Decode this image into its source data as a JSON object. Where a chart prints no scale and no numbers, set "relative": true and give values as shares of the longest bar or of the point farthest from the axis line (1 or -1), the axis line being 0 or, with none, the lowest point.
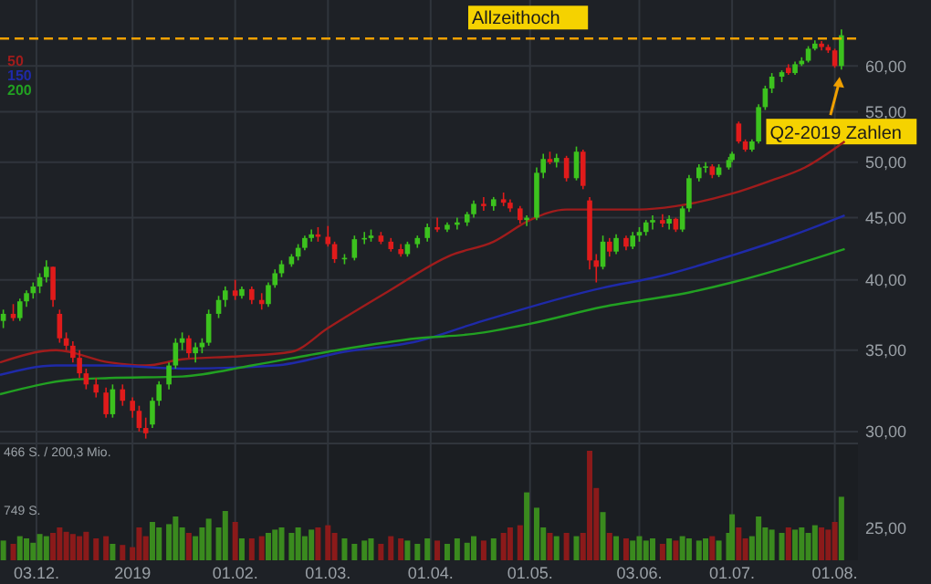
{
  "chart_data": [
    {
      "type": "candlestick",
      "xlim": [
        "2018-11-22",
        "2019-08-08"
      ],
      "xticks": [
        {
          "value": "2018-12-03",
          "label": null
        },
        {
          "value": "2019-01-01",
          "label": null
        },
        {
          "value": "2019-02-01",
          "label": null
        },
        {
          "value": "2019-03-01",
          "label": null
        },
        {
          "value": "2019-04-01",
          "label": null
        },
        {
          "value": "2019-05-01",
          "label": null
        },
        {
          "value": "2019-06-03",
          "label": null
        },
        {
          "value": "2019-07-01",
          "label": null
        },
        {
          "value": "2019-08-01",
          "label": null
        }
      ],
      "ylim": [
        23.5,
        68
      ],
      "yticks": [
        {
          "value": 25,
          "label": "25,00"
        },
        {
          "value": 30,
          "label": "30,00"
        },
        {
          "value": 35,
          "label": "35,00"
        },
        {
          "value": 40,
          "label": "40,00"
        },
        {
          "value": 45,
          "label": "45,00"
        },
        {
          "value": 50,
          "label": "50,00"
        },
        {
          "value": 55,
          "label": "55,00"
        },
        {
          "value": 60,
          "label": "60,00"
        }
      ],
      "log": true,
      "grid": true,
      "tick_labels": "y",
      "legend": "top left",
      "x": [
        "2018-11-23",
        "2018-11-26",
        "2018-11-28",
        "2018-11-30",
        "2018-12-02",
        "2018-12-04",
        "2018-12-06",
        "2018-12-08",
        "2018-12-10",
        "2018-12-12",
        "2018-12-14",
        "2018-12-16",
        "2018-12-18",
        "2018-12-21",
        "2018-12-24",
        "2018-12-26",
        "2018-12-29",
        "2019-01-01",
        "2019-01-03",
        "2019-01-05",
        "2019-01-07",
        "2019-01-09",
        "2019-01-12",
        "2019-01-14",
        "2019-01-16",
        "2019-01-18",
        "2019-01-20",
        "2019-01-22",
        "2019-01-24",
        "2019-01-27",
        "2019-01-29",
        "2019-02-01",
        "2019-02-03",
        "2019-02-06",
        "2019-02-09",
        "2019-02-11",
        "2019-02-13",
        "2019-02-15",
        "2019-02-18",
        "2019-02-20",
        "2019-02-22",
        "2019-02-24",
        "2019-02-26",
        "2019-03-01",
        "2019-03-03",
        "2019-03-06",
        "2019-03-09",
        "2019-03-12",
        "2019-03-14",
        "2019-03-17",
        "2019-03-20",
        "2019-03-23",
        "2019-03-25",
        "2019-03-28",
        "2019-03-31",
        "2019-04-03",
        "2019-04-06",
        "2019-04-09",
        "2019-04-12",
        "2019-04-14",
        "2019-04-17",
        "2019-04-20",
        "2019-04-23",
        "2019-04-25",
        "2019-04-28",
        "2019-04-30",
        "2019-05-03",
        "2019-05-05",
        "2019-05-07",
        "2019-05-09",
        "2019-05-12",
        "2019-05-15",
        "2019-05-17",
        "2019-05-19",
        "2019-05-21",
        "2019-05-23",
        "2019-05-25",
        "2019-05-27",
        "2019-05-30",
        "2019-06-01",
        "2019-06-03",
        "2019-06-05",
        "2019-06-07",
        "2019-06-10",
        "2019-06-12",
        "2019-06-14",
        "2019-06-16",
        "2019-06-18",
        "2019-06-21",
        "2019-06-23",
        "2019-06-25",
        "2019-06-27",
        "2019-06-30",
        "2019-07-01",
        "2019-07-03",
        "2019-07-05",
        "2019-07-07",
        "2019-07-09",
        "2019-07-11",
        "2019-07-13",
        "2019-07-16",
        "2019-07-18",
        "2019-07-20",
        "2019-07-22",
        "2019-07-24",
        "2019-07-26",
        "2019-07-28",
        "2019-07-30",
        "2019-08-01",
        "2019-08-03"
      ],
      "ohlc": [
        [
          37.0,
          37.8,
          36.5,
          37.5
        ],
        [
          37.5,
          38.2,
          37.0,
          37.2
        ],
        [
          37.2,
          38.6,
          37.0,
          38.4
        ],
        [
          38.4,
          39.2,
          38.0,
          39.0
        ],
        [
          39.0,
          39.8,
          38.6,
          39.5
        ],
        [
          39.5,
          40.5,
          39.0,
          40.2
        ],
        [
          40.2,
          41.5,
          39.8,
          41.0
        ],
        [
          41.0,
          41.0,
          38.0,
          38.5
        ],
        [
          37.5,
          37.8,
          35.5,
          35.8
        ],
        [
          35.8,
          36.2,
          35.0,
          35.3
        ],
        [
          35.3,
          35.6,
          34.2,
          34.5
        ],
        [
          34.5,
          35.0,
          33.2,
          33.5
        ],
        [
          33.5,
          33.8,
          32.5,
          32.8
        ],
        [
          32.8,
          33.2,
          32.0,
          32.3
        ],
        [
          32.3,
          32.6,
          30.8,
          31.0
        ],
        [
          31.0,
          32.8,
          30.8,
          32.5
        ],
        [
          32.5,
          32.8,
          31.5,
          31.8
        ],
        [
          31.8,
          32.0,
          30.8,
          31.2
        ],
        [
          31.2,
          31.5,
          30.0,
          30.2
        ],
        [
          30.2,
          30.8,
          29.6,
          29.9
        ],
        [
          30.4,
          32.0,
          30.2,
          31.8
        ],
        [
          31.8,
          33.0,
          31.5,
          32.8
        ],
        [
          32.8,
          34.2,
          32.5,
          34.0
        ],
        [
          34.0,
          35.8,
          33.8,
          35.5
        ],
        [
          35.5,
          36.2,
          35.0,
          35.8
        ],
        [
          35.8,
          36.0,
          34.5,
          34.8
        ],
        [
          34.8,
          35.5,
          34.2,
          35.2
        ],
        [
          35.2,
          35.8,
          34.8,
          35.5
        ],
        [
          35.5,
          37.8,
          35.3,
          37.5
        ],
        [
          37.5,
          38.8,
          37.2,
          38.5
        ],
        [
          38.5,
          39.5,
          38.0,
          39.2
        ],
        [
          39.2,
          40.0,
          38.5,
          38.8
        ],
        [
          38.8,
          39.5,
          38.6,
          39.3
        ],
        [
          39.3,
          39.5,
          38.2,
          38.5
        ],
        [
          38.5,
          39.0,
          37.8,
          38.2
        ],
        [
          38.2,
          39.8,
          38.0,
          39.6
        ],
        [
          39.6,
          40.8,
          39.4,
          40.5
        ],
        [
          40.5,
          41.5,
          40.2,
          41.2
        ],
        [
          41.2,
          42.0,
          41.0,
          41.8
        ],
        [
          41.8,
          42.8,
          41.5,
          42.5
        ],
        [
          42.5,
          43.5,
          42.3,
          43.3
        ],
        [
          43.3,
          44.0,
          43.0,
          43.6
        ],
        [
          43.6,
          44.2,
          43.0,
          43.4
        ],
        [
          43.4,
          44.3,
          42.6,
          42.8
        ],
        [
          42.8,
          43.0,
          41.3,
          41.6
        ],
        [
          41.6,
          42.0,
          41.2,
          41.7
        ],
        [
          41.7,
          43.5,
          41.5,
          43.2
        ],
        [
          43.2,
          43.8,
          42.8,
          43.3
        ],
        [
          43.3,
          44.0,
          43.0,
          43.5
        ],
        [
          43.5,
          43.8,
          42.8,
          43.0
        ],
        [
          43.0,
          43.3,
          42.2,
          42.4
        ],
        [
          42.4,
          42.8,
          41.8,
          42.0
        ],
        [
          42.0,
          43.0,
          41.8,
          42.8
        ],
        [
          42.8,
          43.5,
          42.5,
          43.3
        ],
        [
          43.3,
          44.5,
          43.0,
          44.2
        ],
        [
          44.2,
          45.0,
          43.8,
          44.0
        ],
        [
          44.0,
          44.6,
          43.8,
          44.4
        ],
        [
          44.4,
          45.0,
          44.0,
          44.6
        ],
        [
          44.6,
          45.5,
          44.3,
          45.3
        ],
        [
          45.3,
          46.5,
          45.0,
          46.2
        ],
        [
          46.2,
          46.8,
          45.6,
          46.0
        ],
        [
          46.0,
          46.8,
          45.6,
          46.6
        ],
        [
          46.6,
          47.2,
          46.0,
          46.3
        ],
        [
          46.3,
          46.6,
          45.5,
          45.8
        ],
        [
          45.8,
          46.0,
          44.5,
          44.8
        ],
        [
          44.8,
          45.2,
          44.3,
          45.0
        ],
        [
          45.0,
          49.5,
          44.8,
          49.0
        ],
        [
          49.0,
          50.8,
          48.5,
          50.3
        ],
        [
          50.3,
          51.0,
          49.8,
          50.0
        ],
        [
          50.0,
          50.8,
          49.5,
          50.4
        ],
        [
          50.4,
          50.6,
          48.2,
          48.5
        ],
        [
          48.5,
          51.5,
          48.3,
          51.0
        ],
        [
          51.0,
          51.2,
          47.5,
          47.8
        ],
        [
          46.5,
          46.8,
          40.8,
          41.5
        ],
        [
          41.5,
          42.0,
          39.8,
          41.0
        ],
        [
          41.0,
          43.5,
          40.8,
          43.0
        ],
        [
          43.0,
          43.3,
          41.8,
          42.2
        ],
        [
          42.2,
          43.6,
          42.0,
          43.3
        ],
        [
          43.3,
          43.5,
          42.3,
          42.6
        ],
        [
          42.6,
          43.8,
          42.4,
          43.5
        ],
        [
          43.5,
          44.2,
          43.0,
          43.8
        ],
        [
          43.8,
          44.8,
          43.5,
          44.6
        ],
        [
          44.6,
          45.2,
          44.0,
          44.8
        ],
        [
          44.8,
          45.3,
          44.2,
          44.5
        ],
        [
          44.5,
          45.2,
          44.0,
          44.9
        ],
        [
          44.9,
          45.0,
          43.8,
          44.0
        ],
        [
          44.0,
          46.0,
          43.8,
          45.8
        ],
        [
          45.8,
          48.8,
          45.5,
          48.5
        ],
        [
          48.5,
          49.8,
          48.2,
          49.5
        ],
        [
          49.5,
          50.0,
          49.0,
          49.6
        ],
        [
          49.6,
          49.8,
          48.5,
          48.8
        ],
        [
          48.8,
          49.8,
          48.6,
          49.5
        ],
        [
          49.5,
          50.5,
          49.3,
          50.2
        ],
        [
          50.2,
          51.0,
          50.0,
          50.8
        ],
        [
          53.8,
          54.0,
          51.8,
          52.0
        ],
        [
          52.0,
          52.2,
          51.0,
          51.2
        ],
        [
          51.2,
          52.2,
          51.0,
          52.0
        ],
        [
          52.0,
          55.8,
          51.8,
          55.5
        ],
        [
          55.5,
          57.8,
          55.2,
          57.5
        ],
        [
          57.5,
          59.2,
          57.0,
          58.8
        ],
        [
          58.8,
          59.5,
          58.2,
          59.3
        ],
        [
          59.8,
          60.2,
          59.0,
          59.2
        ],
        [
          59.2,
          60.5,
          59.0,
          60.2
        ],
        [
          60.2,
          61.0,
          60.0,
          60.6
        ],
        [
          60.6,
          62.3,
          60.4,
          62.0
        ],
        [
          62.0,
          63.0,
          61.8,
          62.6
        ],
        [
          62.6,
          62.9,
          61.8,
          62.2
        ],
        [
          62.2,
          62.5,
          61.5,
          61.8
        ],
        [
          61.8,
          62.0,
          59.8,
          60.0
        ],
        [
          60.0,
          64.3,
          59.6,
          63.6
        ]
      ],
      "series": [
        {
          "type": "line",
          "name": "50",
          "color": "#a01c1c",
          "x": [
            "2018-11-22",
            "2018-12-09",
            "2018-12-25",
            "2019-01-05",
            "2019-01-16",
            "2019-02-02",
            "2019-02-18",
            "2019-03-01",
            "2019-03-19",
            "2019-04-07",
            "2019-04-20",
            "2019-05-01",
            "2019-05-12",
            "2019-05-23",
            "2019-06-03",
            "2019-06-14",
            "2019-07-01",
            "2019-07-12",
            "2019-07-23",
            "2019-08-04"
          ],
          "values": [
            34.2,
            35.0,
            34.2,
            34.0,
            34.4,
            34.6,
            34.9,
            36.5,
            39.1,
            41.9,
            43.0,
            44.8,
            45.7,
            45.7,
            45.7,
            46.0,
            47.1,
            48.2,
            49.5,
            52.0
          ]
        },
        {
          "type": "line",
          "name": "150",
          "color": "#1f2aa8",
          "x": [
            "2018-11-22",
            "2018-12-09",
            "2018-12-25",
            "2019-01-16",
            "2019-02-13",
            "2019-03-06",
            "2019-03-28",
            "2019-04-14",
            "2019-05-23",
            "2019-06-08",
            "2019-07-01",
            "2019-07-18",
            "2019-08-04"
          ],
          "values": [
            33.4,
            34.0,
            34.0,
            33.8,
            34.0,
            34.9,
            35.6,
            36.8,
            39.4,
            40.2,
            41.9,
            43.4,
            45.2
          ]
        },
        {
          "type": "line",
          "name": "200",
          "color": "#22a022",
          "x": [
            "2018-11-22",
            "2018-12-14",
            "2018-12-25",
            "2019-01-16",
            "2019-02-06",
            "2019-03-01",
            "2019-03-28",
            "2019-04-14",
            "2019-05-01",
            "2019-05-23",
            "2019-06-19",
            "2019-07-01",
            "2019-07-18",
            "2019-08-04"
          ],
          "values": [
            32.2,
            33.1,
            33.2,
            33.3,
            34.0,
            34.9,
            35.8,
            36.1,
            36.8,
            38.0,
            39.1,
            39.8,
            41.0,
            42.4
          ]
        }
      ],
      "ref_lines": [
        {
          "axis": "y",
          "value": 63.2,
          "label": "Allzeithoch",
          "color": "#f0a000",
          "line_style": "dashed"
        }
      ],
      "annotations": [
        {
          "text": "Q2-2019 Zahlen",
          "x": "2019-08-03",
          "y": 59.6
        }
      ]
    },
    {
      "type": "bar",
      "relative": true,
      "xlim": [
        "2018-11-22",
        "2019-08-08"
      ],
      "xticks": [
        {
          "value": "2018-12-03",
          "label": "03.12."
        },
        {
          "value": "2019-01-01",
          "label": "2019"
        },
        {
          "value": "2019-02-01",
          "label": "01.02."
        },
        {
          "value": "2019-03-01",
          "label": "01.03."
        },
        {
          "value": "2019-04-01",
          "label": "01.04."
        },
        {
          "value": "2019-05-01",
          "label": "01.05."
        },
        {
          "value": "2019-06-03",
          "label": "03.06."
        },
        {
          "value": "2019-07-01",
          "label": "01.07."
        },
        {
          "value": "2019-08-01",
          "label": "01.08."
        }
      ],
      "tick_labels": "x",
      "grid": "x",
      "x": [
        "2018-11-23",
        "2018-11-26",
        "2018-11-28",
        "2018-11-30",
        "2018-12-02",
        "2018-12-04",
        "2018-12-06",
        "2018-12-08",
        "2018-12-10",
        "2018-12-12",
        "2018-12-14",
        "2018-12-16",
        "2018-12-18",
        "2018-12-21",
        "2018-12-24",
        "2018-12-26",
        "2018-12-29",
        "2019-01-01",
        "2019-01-03",
        "2019-01-05",
        "2019-01-07",
        "2019-01-09",
        "2019-01-12",
        "2019-01-14",
        "2019-01-16",
        "2019-01-18",
        "2019-01-20",
        "2019-01-22",
        "2019-01-24",
        "2019-01-27",
        "2019-01-29",
        "2019-02-01",
        "2019-02-03",
        "2019-02-06",
        "2019-02-09",
        "2019-02-11",
        "2019-02-13",
        "2019-02-15",
        "2019-02-18",
        "2019-02-20",
        "2019-02-22",
        "2019-02-24",
        "2019-02-26",
        "2019-03-01",
        "2019-03-03",
        "2019-03-06",
        "2019-03-09",
        "2019-03-12",
        "2019-03-14",
        "2019-03-17",
        "2019-03-20",
        "2019-03-23",
        "2019-03-25",
        "2019-03-28",
        "2019-03-31",
        "2019-04-03",
        "2019-04-06",
        "2019-04-09",
        "2019-04-12",
        "2019-04-14",
        "2019-04-17",
        "2019-04-20",
        "2019-04-23",
        "2019-04-25",
        "2019-04-28",
        "2019-04-30",
        "2019-05-03",
        "2019-05-05",
        "2019-05-07",
        "2019-05-09",
        "2019-05-12",
        "2019-05-15",
        "2019-05-17",
        "2019-05-19",
        "2019-05-21",
        "2019-05-23",
        "2019-05-25",
        "2019-05-27",
        "2019-05-30",
        "2019-06-01",
        "2019-06-03",
        "2019-06-05",
        "2019-06-07",
        "2019-06-10",
        "2019-06-12",
        "2019-06-14",
        "2019-06-16",
        "2019-06-18",
        "2019-06-21",
        "2019-06-23",
        "2019-06-25",
        "2019-06-27",
        "2019-06-30",
        "2019-07-01",
        "2019-07-03",
        "2019-07-05",
        "2019-07-07",
        "2019-07-09",
        "2019-07-11",
        "2019-07-13",
        "2019-07-16",
        "2019-07-18",
        "2019-07-20",
        "2019-07-22",
        "2019-07-24",
        "2019-07-26",
        "2019-07-28",
        "2019-07-30",
        "2019-08-01",
        "2019-08-03"
      ],
      "values": [
        0.18,
        0.15,
        0.22,
        0.2,
        0.16,
        0.24,
        0.22,
        0.25,
        0.3,
        0.26,
        0.24,
        0.22,
        0.26,
        0.2,
        0.22,
        0.15,
        0.14,
        0.12,
        0.3,
        0.22,
        0.35,
        0.3,
        0.33,
        0.4,
        0.3,
        0.25,
        0.22,
        0.3,
        0.38,
        0.3,
        0.45,
        0.35,
        0.2,
        0.2,
        0.22,
        0.25,
        0.28,
        0.3,
        0.25,
        0.3,
        0.22,
        0.28,
        0.3,
        0.32,
        0.25,
        0.2,
        0.15,
        0.18,
        0.2,
        0.15,
        0.22,
        0.2,
        0.18,
        0.15,
        0.2,
        0.18,
        0.15,
        0.2,
        0.16,
        0.22,
        0.18,
        0.2,
        0.25,
        0.3,
        0.32,
        0.62,
        0.48,
        0.3,
        0.25,
        0.22,
        0.25,
        0.22,
        0.25,
        1.0,
        0.66,
        0.44,
        0.25,
        0.22,
        0.2,
        0.18,
        0.22,
        0.18,
        0.2,
        0.15,
        0.2,
        0.18,
        0.22,
        0.2,
        0.18,
        0.2,
        0.22,
        0.18,
        0.25,
        0.42,
        0.3,
        0.2,
        0.22,
        0.4,
        0.3,
        0.28,
        0.25,
        0.3,
        0.28,
        0.3,
        0.25,
        0.32,
        0.3,
        0.28,
        0.35,
        0.58
      ],
      "colors": [
        "#3a8a1e",
        "#8b1a1a",
        "#3a8a1e",
        "#3a8a1e",
        "#3a8a1e",
        "#3a8a1e",
        "#3a8a1e",
        "#8b1a1a",
        "#8b1a1a",
        "#8b1a1a",
        "#8b1a1a",
        "#8b1a1a",
        "#8b1a1a",
        "#8b1a1a",
        "#8b1a1a",
        "#3a8a1e",
        "#8b1a1a",
        "#8b1a1a",
        "#8b1a1a",
        "#8b1a1a",
        "#3a8a1e",
        "#3a8a1e",
        "#3a8a1e",
        "#3a8a1e",
        "#3a8a1e",
        "#8b1a1a",
        "#3a8a1e",
        "#3a8a1e",
        "#3a8a1e",
        "#3a8a1e",
        "#3a8a1e",
        "#8b1a1a",
        "#3a8a1e",
        "#8b1a1a",
        "#8b1a1a",
        "#3a8a1e",
        "#3a8a1e",
        "#3a8a1e",
        "#3a8a1e",
        "#3a8a1e",
        "#3a8a1e",
        "#3a8a1e",
        "#8b1a1a",
        "#8b1a1a",
        "#8b1a1a",
        "#3a8a1e",
        "#3a8a1e",
        "#3a8a1e",
        "#3a8a1e",
        "#8b1a1a",
        "#8b1a1a",
        "#8b1a1a",
        "#3a8a1e",
        "#3a8a1e",
        "#3a8a1e",
        "#8b1a1a",
        "#3a8a1e",
        "#3a8a1e",
        "#3a8a1e",
        "#3a8a1e",
        "#8b1a1a",
        "#3a8a1e",
        "#8b1a1a",
        "#8b1a1a",
        "#8b1a1a",
        "#3a8a1e",
        "#3a8a1e",
        "#3a8a1e",
        "#8b1a1a",
        "#3a8a1e",
        "#8b1a1a",
        "#3a8a1e",
        "#8b1a1a",
        "#8b1a1a",
        "#8b1a1a",
        "#3a8a1e",
        "#8b1a1a",
        "#3a8a1e",
        "#8b1a1a",
        "#3a8a1e",
        "#3a8a1e",
        "#3a8a1e",
        "#3a8a1e",
        "#8b1a1a",
        "#3a8a1e",
        "#8b1a1a",
        "#3a8a1e",
        "#3a8a1e",
        "#3a8a1e",
        "#3a8a1e",
        "#8b1a1a",
        "#3a8a1e",
        "#3a8a1e",
        "#3a8a1e",
        "#8b1a1a",
        "#8b1a1a",
        "#3a8a1e",
        "#3a8a1e",
        "#3a8a1e",
        "#3a8a1e",
        "#3a8a1e",
        "#8b1a1a",
        "#3a8a1e",
        "#3a8a1e",
        "#3a8a1e",
        "#3a8a1e",
        "#8b1a1a",
        "#8b1a1a",
        "#8b1a1a",
        "#3a8a1e"
      ],
      "annotations": [
        "466 S. / 200,3 Mio.",
        "749 S."
      ]
    }
  ]
}
